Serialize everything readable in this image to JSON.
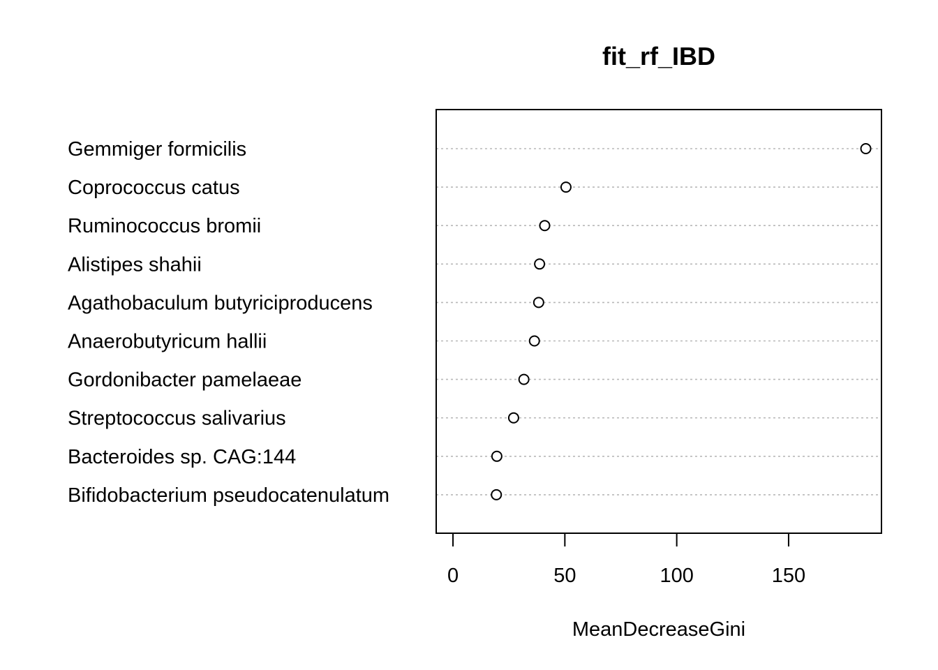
{
  "chart_data": {
    "type": "scatter",
    "title": "fit_rf_IBD",
    "xlabel": "MeanDecreaseGini",
    "ylabel": "",
    "xlim": [
      -7.5,
      191.5
    ],
    "x_ticks": [
      0,
      50,
      100,
      150
    ],
    "grid": "dotted horizontal guide lines",
    "categories": [
      "Gemmiger formicilis",
      "Coprococcus catus",
      "Ruminococcus bromii",
      "Alistipes shahii",
      "Agathobaculum butyriciproducens",
      "Anaerobutyricum hallii",
      "Gordonibacter pamelaeae",
      "Streptococcus salivarius",
      "Bacteroides sp. CAG:144",
      "Bifidobacterium pseudocatenulatum"
    ],
    "values": [
      184.5,
      50.5,
      41.0,
      38.7,
      38.3,
      36.4,
      31.7,
      27.1,
      19.6,
      19.4
    ]
  }
}
